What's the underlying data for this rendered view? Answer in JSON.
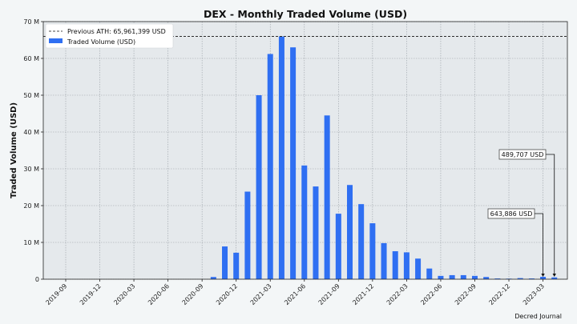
{
  "chart_data": {
    "type": "bar",
    "title": "DEX - Monthly Traded Volume (USD)",
    "xlabel": "",
    "ylabel": "Traded Volume (USD)",
    "ylim": [
      0,
      70000000
    ],
    "y_ticks": [
      0,
      10000000,
      20000000,
      30000000,
      40000000,
      50000000,
      60000000,
      70000000
    ],
    "y_tick_labels": [
      "0",
      "10 M",
      "20 M",
      "30 M",
      "40 M",
      "50 M",
      "60 M",
      "70 M"
    ],
    "x_tick_labels": [
      "2019-09",
      "2019-12",
      "2020-03",
      "2020-06",
      "2020-09",
      "2020-12",
      "2021-03",
      "2021-06",
      "2021-09",
      "2021-12",
      "2022-03",
      "2022-06",
      "2022-09",
      "2022-12",
      "2023-03"
    ],
    "categories": [
      "2019-09",
      "2019-10",
      "2019-11",
      "2019-12",
      "2020-01",
      "2020-02",
      "2020-03",
      "2020-04",
      "2020-05",
      "2020-06",
      "2020-07",
      "2020-08",
      "2020-09",
      "2020-10",
      "2020-11",
      "2020-12",
      "2021-01",
      "2021-02",
      "2021-03",
      "2021-04",
      "2021-05",
      "2021-06",
      "2021-07",
      "2021-08",
      "2021-09",
      "2021-10",
      "2021-11",
      "2021-12",
      "2022-01",
      "2022-02",
      "2022-03",
      "2022-04",
      "2022-05",
      "2022-06",
      "2022-07",
      "2022-08",
      "2022-09",
      "2022-10",
      "2022-11",
      "2022-12",
      "2023-01",
      "2023-02",
      "2023-03",
      "2023-04"
    ],
    "series": [
      {
        "name": "Traded Volume (USD)",
        "color": "#2f6ff2",
        "values": [
          0,
          0,
          0,
          0,
          0,
          0,
          0,
          0,
          0,
          0,
          0,
          0,
          0,
          600000,
          8900000,
          7200000,
          23800000,
          50000000,
          61200000,
          65961399,
          63000000,
          30900000,
          25200000,
          44500000,
          17800000,
          25600000,
          20400000,
          15200000,
          9800000,
          7600000,
          7300000,
          5600000,
          2900000,
          900000,
          1100000,
          1100000,
          900000,
          600000,
          200000,
          150000,
          300000,
          200000,
          643886,
          489707
        ]
      }
    ],
    "reference_line": {
      "label": "Previous ATH: 65,961,399 USD",
      "value": 65961399,
      "style": "dashed",
      "color": "#111111"
    },
    "annotations": [
      {
        "text": "643,886 USD",
        "category": "2023-03",
        "value": 643886
      },
      {
        "text": "489,707 USD",
        "category": "2023-04",
        "value": 489707
      }
    ],
    "legend": {
      "position": "top-left",
      "entries": [
        "Previous ATH: 65,961,399 USD",
        "Traded Volume (USD)"
      ]
    },
    "grid": true,
    "colors": {
      "bar": "#2f6ff2",
      "plot_bg": "#e5e9ec",
      "page_bg": "#f3f6f7",
      "grid": "#9aa0a6"
    }
  },
  "footer": "Decred Journal"
}
